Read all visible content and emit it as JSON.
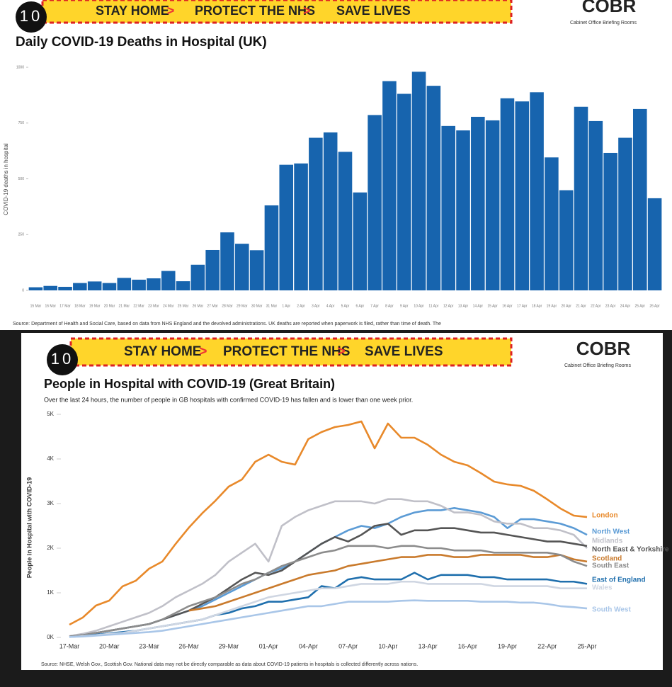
{
  "header": {
    "logo": "10",
    "slogan": [
      "STAY HOME",
      "PROTECT THE NHS",
      "SAVE LIVES"
    ],
    "brand": "COBR",
    "brand_sub": "Cabinet Office Briefing Rooms"
  },
  "chart_data": [
    {
      "type": "bar",
      "title": "Daily COVID-19 Deaths in Hospital (UK)",
      "y_label": "COVID-19 deaths in hospital",
      "source": "Source: Department of Health and Social Care, based on data from NHS England and the devolved administrations. UK deaths are reported when paperwork is filed, rather than time of death. The",
      "categories": [
        "15 Mar",
        "16 Mar",
        "17 Mar",
        "18 Mar",
        "19 Mar",
        "20 Mar",
        "21 Mar",
        "22 Mar",
        "23 Mar",
        "24 Mar",
        "25 Mar",
        "26 Mar",
        "27 Mar",
        "28 Mar",
        "29 Mar",
        "30 Mar",
        "31 Mar",
        "1 Apr",
        "2 Apr",
        "3 Apr",
        "4 Apr",
        "5 Apr",
        "6 Apr",
        "7 Apr",
        "8 Apr",
        "9 Apr",
        "10 Apr",
        "11 Apr",
        "12 Apr",
        "13 Apr",
        "14 Apr",
        "15 Apr",
        "16 Apr",
        "17 Apr",
        "18 Apr",
        "19 Apr",
        "20 Apr",
        "21 Apr",
        "22 Apr",
        "23 Apr",
        "24 Apr",
        "25 Apr",
        "26 Apr"
      ],
      "values": [
        14,
        20,
        16,
        33,
        40,
        33,
        56,
        48,
        54,
        87,
        41,
        115,
        181,
        260,
        209,
        180,
        381,
        563,
        569,
        684,
        708,
        621,
        439,
        786,
        938,
        881,
        980,
        917,
        737,
        717,
        778,
        762,
        861,
        847,
        888,
        596,
        449,
        823,
        759,
        616,
        684,
        813,
        413
      ],
      "color": "#1764ae",
      "ylim": [
        0,
        1000
      ],
      "yticks": [
        0,
        250,
        500,
        750,
        1000
      ]
    },
    {
      "type": "line",
      "title": "People in Hospital with COVID-19 (Great Britain)",
      "subtitle": "Over the last 24 hours, the number of people in GB hospitals with confirmed COVID-19 has fallen and is lower than one week prior.",
      "y_label": "People in Hospital with COVID-19",
      "source": "Source: NHSE, Welsh Gov., Scottish Gov. National data may not be directly comparable as data about COVID-19 patients in hospitals is collected differently across nations.",
      "categories": [
        "17-Mar",
        null,
        null,
        "20-Mar",
        null,
        null,
        "23-Mar",
        null,
        null,
        "26-Mar",
        null,
        null,
        "29-Mar",
        null,
        null,
        "01-Apr",
        null,
        null,
        "04-Apr",
        null,
        null,
        "07-Apr",
        null,
        null,
        "10-Apr",
        null,
        null,
        "13-Apr",
        null,
        null,
        "16-Apr",
        null,
        null,
        "19-Apr",
        null,
        null,
        "22-Apr",
        null,
        null,
        "25-Apr"
      ],
      "ylim": [
        0,
        5000
      ],
      "yticks": [
        {
          "value": 0,
          "label": "0K"
        },
        {
          "value": 1000,
          "label": "1K"
        },
        {
          "value": 2000,
          "label": "2K"
        },
        {
          "value": 3000,
          "label": "3K"
        },
        {
          "value": 4000,
          "label": "4K"
        },
        {
          "value": 5000,
          "label": "5K"
        }
      ],
      "series": [
        {
          "name": "London",
          "color": "#e8892a",
          "values": [
            286,
            444,
            714,
            825,
            1143,
            1270,
            1540,
            1700,
            2095,
            2460,
            2780,
            3063,
            3380,
            3540,
            3937,
            4095,
            3937,
            3873,
            4444,
            4603,
            4714,
            4762,
            4841,
            4238,
            4794,
            4476,
            4476,
            4317,
            4095,
            3937,
            3857,
            3683,
            3492,
            3429,
            3397,
            3286,
            3095,
            2889,
            2730,
            2698
          ]
        },
        {
          "name": "North West",
          "color": "#5b9bd5",
          "values": [
            20,
            50,
            100,
            150,
            200,
            250,
            300,
            400,
            500,
            600,
            700,
            850,
            1000,
            1150,
            1300,
            1450,
            1550,
            1700,
            1900,
            2100,
            2250,
            2400,
            2500,
            2450,
            2550,
            2700,
            2800,
            2850,
            2850,
            2900,
            2850,
            2800,
            2700,
            2450,
            2650,
            2650,
            2600,
            2550,
            2450,
            2300
          ]
        },
        {
          "name": "Midlands",
          "color": "#c0c0c8",
          "values": [
            30,
            80,
            150,
            250,
            350,
            450,
            550,
            700,
            900,
            1050,
            1200,
            1400,
            1700,
            1900,
            2100,
            1700,
            2500,
            2700,
            2850,
            2950,
            3050,
            3050,
            3050,
            3000,
            3100,
            3100,
            3050,
            3050,
            2950,
            2800,
            2800,
            2750,
            2600,
            2550,
            2550,
            2450,
            2450,
            2400,
            2300,
            2000
          ]
        },
        {
          "name": "North East & Yorkshire",
          "color": "#555555",
          "values": [
            20,
            50,
            100,
            150,
            200,
            250,
            300,
            400,
            500,
            600,
            750,
            900,
            1100,
            1300,
            1450,
            1400,
            1500,
            1700,
            1900,
            2100,
            2250,
            2150,
            2300,
            2500,
            2550,
            2300,
            2400,
            2400,
            2450,
            2450,
            2400,
            2350,
            2350,
            2300,
            2250,
            2200,
            2150,
            2150,
            2100,
            2050
          ]
        },
        {
          "name": "Scotland",
          "color": "#c97a2c",
          "values": [
            null,
            null,
            null,
            null,
            null,
            null,
            null,
            null,
            null,
            600,
            650,
            700,
            800,
            900,
            1000,
            1100,
            1200,
            1300,
            1400,
            1450,
            1500,
            1600,
            1650,
            1700,
            1750,
            1800,
            1800,
            1850,
            1850,
            1800,
            1800,
            1850,
            1850,
            1850,
            1850,
            1800,
            1800,
            1850,
            1750,
            1700
          ]
        },
        {
          "name": "South East",
          "color": "#8c8c8c",
          "values": [
            20,
            50,
            100,
            150,
            200,
            250,
            300,
            400,
            550,
            700,
            800,
            900,
            1050,
            1200,
            1300,
            1450,
            1600,
            1700,
            1800,
            1900,
            1950,
            2050,
            2050,
            2050,
            2000,
            2050,
            2050,
            2000,
            2000,
            1950,
            1950,
            1950,
            1900,
            1900,
            1900,
            1900,
            1900,
            1850,
            1700,
            1600
          ]
        },
        {
          "name": "East of England",
          "color": "#1f6fad",
          "values": [
            10,
            30,
            60,
            90,
            120,
            150,
            200,
            250,
            300,
            350,
            400,
            500,
            550,
            650,
            700,
            800,
            800,
            850,
            900,
            1150,
            1100,
            1300,
            1350,
            1300,
            1300,
            1300,
            1450,
            1300,
            1400,
            1400,
            1400,
            1350,
            1350,
            1300,
            1300,
            1300,
            1300,
            1250,
            1250,
            1200
          ]
        },
        {
          "name": "Wales",
          "color": "#cfd6e2",
          "values": [
            10,
            30,
            50,
            80,
            100,
            150,
            200,
            250,
            300,
            350,
            400,
            500,
            600,
            700,
            800,
            900,
            950,
            1000,
            1050,
            1100,
            1100,
            1150,
            1200,
            1200,
            1200,
            1250,
            1250,
            1200,
            1200,
            1200,
            1200,
            1200,
            1150,
            1150,
            1150,
            1150,
            1150,
            1100,
            1100,
            1100
          ]
        },
        {
          "name": "South West",
          "color": "#a9c6e8",
          "values": [
            10,
            20,
            40,
            60,
            80,
            100,
            120,
            150,
            200,
            250,
            300,
            350,
            400,
            450,
            500,
            550,
            600,
            650,
            700,
            700,
            750,
            800,
            800,
            800,
            800,
            820,
            830,
            820,
            820,
            820,
            820,
            800,
            800,
            800,
            780,
            780,
            750,
            700,
            680,
            650
          ]
        }
      ]
    }
  ]
}
